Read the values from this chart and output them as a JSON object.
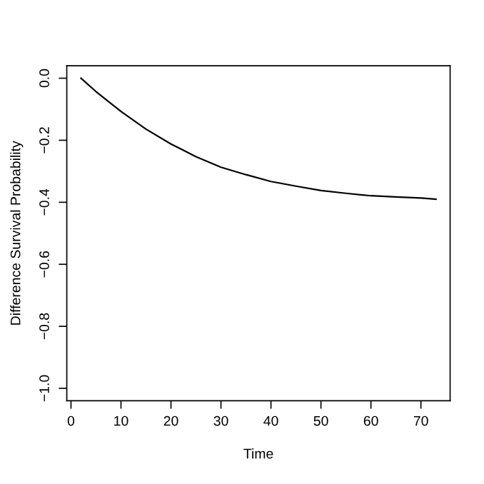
{
  "chart_data": {
    "type": "line",
    "xlabel": "Time",
    "ylabel": "Difference Survival Probability",
    "x": [
      2,
      5,
      10,
      15,
      20,
      25,
      30,
      35,
      40,
      45,
      50,
      55,
      60,
      65,
      70,
      73
    ],
    "series": [
      {
        "color": "#000000",
        "values": [
          0,
          -0.043,
          -0.107,
          -0.164,
          -0.212,
          -0.253,
          -0.287,
          -0.311,
          -0.333,
          -0.348,
          -0.362,
          -0.371,
          -0.379,
          -0.383,
          -0.386,
          -0.39
        ]
      }
    ],
    "xlim": [
      -0.84,
      75.84
    ],
    "ylim": [
      -1.04,
      0.04
    ],
    "xticks": [
      0,
      10,
      20,
      30,
      40,
      50,
      60,
      70
    ],
    "yticks": [
      {
        "value": -1.0,
        "label": "−1.0"
      },
      {
        "value": -0.8,
        "label": "−0.8"
      },
      {
        "value": -0.6,
        "label": "−0.6"
      },
      {
        "value": -0.4,
        "label": "−0.4"
      },
      {
        "value": -0.2,
        "label": "−0.2"
      },
      {
        "value": 0.0,
        "label": "0.0"
      }
    ],
    "grid": false,
    "legend": false,
    "line_style": "solid",
    "marker": "none"
  }
}
